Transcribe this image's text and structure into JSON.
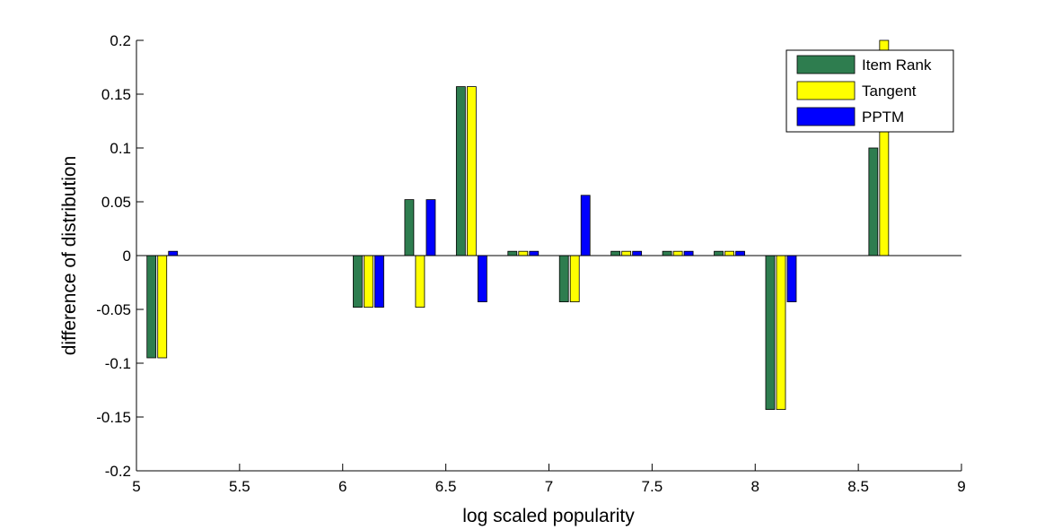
{
  "chart_data": {
    "type": "bar",
    "xlabel": "log scaled popularity",
    "ylabel": "difference of distribution",
    "xlim": [
      5,
      9
    ],
    "ylim": [
      -0.2,
      0.2
    ],
    "xticks": [
      "5",
      "5.5",
      "6",
      "6.5",
      "7",
      "7.5",
      "8",
      "8.5",
      "9"
    ],
    "yticks": [
      "-0.2",
      "-0.15",
      "-0.1",
      "-0.05",
      "0",
      "0.05",
      "0.1",
      "0.15",
      "0.2"
    ],
    "legend_position": "top-right",
    "x": [
      5.125,
      6.125,
      6.375,
      6.625,
      6.875,
      7.125,
      7.375,
      7.625,
      7.875,
      8.125,
      8.625
    ],
    "series": [
      {
        "name": "Item Rank",
        "color": "#2e7d4f",
        "values": [
          -0.095,
          -0.048,
          0.052,
          0.157,
          0.004,
          -0.043,
          0.004,
          0.004,
          0.004,
          -0.143,
          0.1
        ]
      },
      {
        "name": "Tangent",
        "color": "#ffff00",
        "values": [
          -0.095,
          -0.048,
          -0.048,
          0.157,
          0.004,
          -0.043,
          0.004,
          0.004,
          0.004,
          -0.143,
          0.2
        ]
      },
      {
        "name": "PPTM",
        "color": "#0000ff",
        "values": [
          0.004,
          -0.048,
          0.052,
          -0.043,
          0.004,
          0.056,
          0.004,
          0.004,
          0.004,
          -0.043,
          0.0
        ]
      }
    ]
  }
}
